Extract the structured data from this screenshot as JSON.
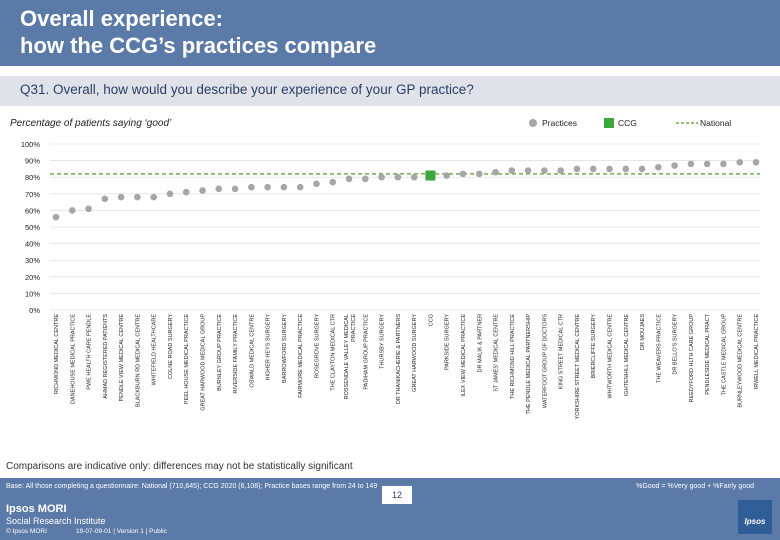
{
  "header": {
    "title_line1": "Overall experience:",
    "title_line2": "how the CCG’s practices compare"
  },
  "question": "Q31. Overall, how would you describe your experience of your GP practice?",
  "subtitle": "Percentage of patients saying ‘good’",
  "legend": {
    "practices": "Practices",
    "ccg": "CCG",
    "national": "National"
  },
  "colors": {
    "header": "#5b7aa8",
    "practice_marker": "#a6a6a6",
    "ccg_marker": "#3ea63e",
    "national_line": "#6fae4a"
  },
  "note": "Comparisons are indicative only: differences may not be statistically significant",
  "footer": {
    "base": "Base: All those completing a questionnaire: National (710,645); CCG 2020 (6,108); Practice bases range from 24 to 149",
    "definition": "%Good = %Very good + %Fairly good",
    "brand_line1": "Ipsos MORI",
    "brand_line2": "Social Research Institute",
    "copyright": "© Ipsos MORI",
    "job_ref": "19-07-09-01 | Version 1 | Public",
    "page": "12",
    "logo": "Ipsos"
  },
  "chart_data": {
    "type": "scatter",
    "title": "Q31. Overall, how would you describe your experience of your GP practice?",
    "ylabel": "Percentage of patients saying ‘good’",
    "ylim": [
      0,
      100
    ],
    "yticks": [
      0,
      10,
      20,
      30,
      40,
      50,
      60,
      70,
      80,
      90,
      100
    ],
    "ytick_labels": [
      "0%",
      "10%",
      "20%",
      "30%",
      "40%",
      "50%",
      "60%",
      "70%",
      "80%",
      "90%",
      "100%"
    ],
    "national": 82,
    "ccg_label": "CCG",
    "ccg_value": 81,
    "categories": [
      "RICHMOND MEDICAL CENTRE",
      "DANEHOUSE MEDICAL PRACTICE",
      "PWE HEALTH CARE PENDLE",
      "AHMAD REGISTERED PATIENTS",
      "PENDLE VIEW MEDICAL CENTRE",
      "BLACKBURN RD MEDICAL CENTRE",
      "WHITEFIELD HEALTHCARE",
      "COLNE ROAD SURGERY",
      "PEEL HOUSE MEDICAL PRACTICE",
      "GREAT HARWOOD MEDICAL GROUP",
      "BURNLEY GROUP PRACTICE",
      "RIVERSIDE FAMILY PRACTICE",
      "OSWALD MEDICAL CENTRE",
      "HIGHER HEYS SURGERY",
      "BARROWFORD SURGERY",
      "FAIRMORE MEDICAL PRACTICE",
      "ROSEGROVE SURGERY",
      "THE CLAYTON MEDICAL CTR",
      "ROSSENDALE VALLEY MEDICAL PRACTICE",
      "PADIHAM GROUP PRACTICE",
      "THURSBY SURGERY",
      "DR THANIKACHERIE & PARTNERS",
      "GREAT HARWOOD SURGERY",
      "CCG",
      "PARKSIDE SURGERY",
      "ILEX VIEW MEDICAL PRACTICE",
      "DR MALIK & PARTNER",
      "ST JAMES' MEDICAL CENTRE",
      "THE RICHMOND HILL PRACTICE",
      "THE PENDLE MEDICAL PARTNERSHIP",
      "WATERFOOT GROUP OF DOCTORS",
      "KING STREET MEDICAL CTR",
      "YORKSHIRE STREET MEDICAL CENTRE",
      "BRIERCLIFFE SURGERY",
      "WHITWORTH MEDICAL CENTRE",
      "IGHTENHILL MEDICAL CENTRE",
      "DR MOUJAES",
      "THE WEAVERS PRACTICE",
      "DR BELLO'S SURGERY",
      "REEDYFORD HLTH CARE GROUP",
      "PENDLESIDE MEDICAL PRACT",
      "THE CASTLE MEDICAL GROUP",
      "BURNLEYWOOD MEDICAL CENTRE",
      "IRWELL MEDICAL PRACTICE"
    ],
    "values": [
      56,
      60,
      61,
      67,
      68,
      68,
      68,
      70,
      71,
      72,
      73,
      73,
      74,
      74,
      74,
      74,
      76,
      77,
      79,
      79,
      80,
      80,
      80,
      81,
      81,
      82,
      82,
      83,
      84,
      84,
      84,
      84,
      85,
      85,
      85,
      85,
      85,
      86,
      87,
      88,
      88,
      88,
      89,
      89
    ]
  }
}
